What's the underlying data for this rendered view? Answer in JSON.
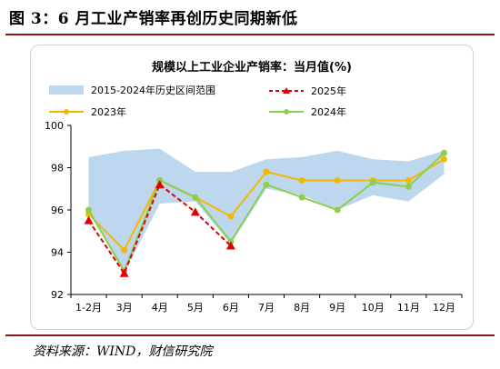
{
  "figure_title": "图 3：6 月工业产销率再创历史同期新低",
  "source": "资料来源：WIND，财信研究院",
  "chart_data": {
    "type": "line",
    "title": "规模以上工业企业产销率：当月值(%)",
    "categories": [
      "1-2月",
      "3月",
      "4月",
      "5月",
      "6月",
      "7月",
      "8月",
      "9月",
      "10月",
      "11月",
      "12月"
    ],
    "ylim": [
      92,
      100
    ],
    "yticks": [
      92,
      94,
      96,
      98,
      100
    ],
    "band": {
      "name": "2015-2024年历史区间范围",
      "color": "#bdd7ee",
      "low": [
        96.0,
        93.0,
        96.3,
        96.4,
        94.4,
        97.0,
        96.7,
        96.0,
        96.7,
        96.4,
        97.7
      ],
      "high": [
        98.5,
        98.8,
        98.9,
        97.8,
        97.8,
        98.4,
        98.5,
        98.8,
        98.4,
        98.3,
        98.8
      ]
    },
    "series": [
      {
        "name": "2025年",
        "color": "#e00000",
        "dashed": true,
        "marker": "triangle",
        "values": [
          95.5,
          93.0,
          97.2,
          95.9,
          94.3,
          null,
          null,
          null,
          null,
          null,
          null
        ]
      },
      {
        "name": "2023年",
        "color": "#f5b800",
        "dashed": false,
        "marker": "circle",
        "values": [
          95.8,
          94.1,
          97.4,
          96.6,
          95.7,
          97.8,
          97.4,
          97.4,
          97.4,
          97.4,
          98.4
        ]
      },
      {
        "name": "2024年",
        "color": "#8dce4e",
        "dashed": false,
        "marker": "circle",
        "values": [
          96.0,
          93.1,
          97.4,
          96.6,
          94.5,
          97.2,
          96.6,
          96.0,
          97.3,
          97.1,
          98.7
        ]
      }
    ],
    "grid": false,
    "legend_position": "top"
  }
}
